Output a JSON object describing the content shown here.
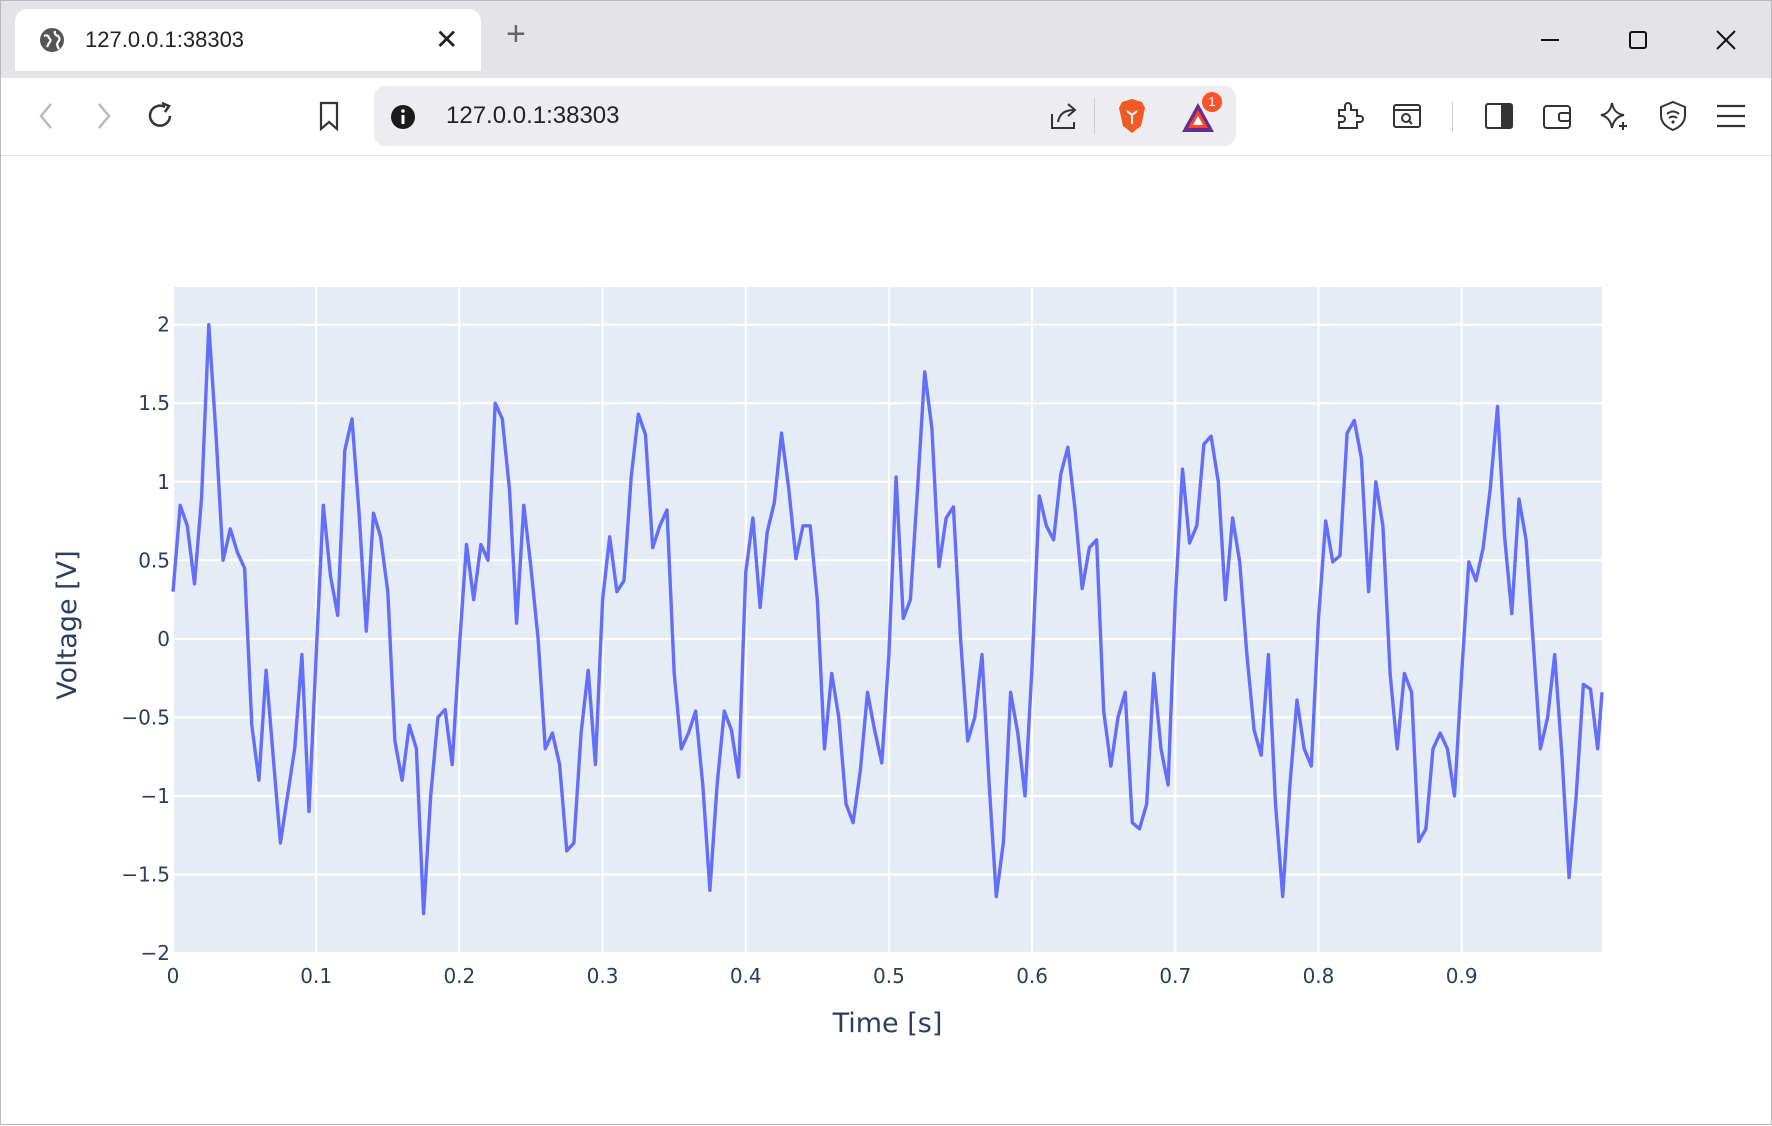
{
  "browser": {
    "tab_title": "127.0.0.1:38303",
    "address": "127.0.0.1:38303",
    "notification_count": "1",
    "new_tab": "+",
    "close_tab": "✕"
  },
  "colors": {
    "line": "#636efa",
    "plot_bg": "#e5ecf6",
    "grid": "#ffffff",
    "text": "#2a3f5f"
  },
  "chart_data": {
    "type": "line",
    "title": "",
    "xlabel": "Time [s]",
    "ylabel": "Voltage [V]",
    "xlim": [
      0,
      0.998
    ],
    "ylim": [
      -2,
      2.24
    ],
    "grid": true,
    "xticks": [
      0,
      0.1,
      0.2,
      0.3,
      0.4,
      0.5,
      0.6,
      0.7,
      0.8,
      0.9
    ],
    "xtick_labels": [
      "0",
      "0.1",
      "0.2",
      "0.3",
      "0.4",
      "0.5",
      "0.6",
      "0.7",
      "0.8",
      "0.9"
    ],
    "yticks": [
      2,
      1.5,
      1,
      0.5,
      0,
      -0.5,
      -1,
      -1.5,
      -2
    ],
    "ytick_labels": [
      "2",
      "1.5",
      "1",
      "0.5",
      "0",
      "−0.5",
      "−1",
      "−1.5",
      "−2"
    ],
    "series": [
      {
        "name": "Voltage",
        "dt": 0.005,
        "values": [
          0.3,
          0.85,
          0.72,
          0.35,
          0.9,
          2.0,
          1.3,
          0.5,
          0.7,
          0.55,
          0.45,
          -0.55,
          -0.9,
          -0.2,
          -0.75,
          -1.3,
          -1.0,
          -0.7,
          -0.1,
          -1.1,
          -0.1,
          0.85,
          0.4,
          0.15,
          1.2,
          1.4,
          0.8,
          0.05,
          0.8,
          0.65,
          0.3,
          -0.65,
          -0.9,
          -0.55,
          -0.7,
          -1.75,
          -1.0,
          -0.5,
          -0.45,
          -0.8,
          -0.05,
          0.6,
          0.25,
          0.6,
          0.5,
          1.5,
          1.4,
          0.95,
          0.1,
          0.85,
          0.45,
          0.0,
          -0.7,
          -0.6,
          -0.8,
          -1.35,
          -1.3,
          -0.6,
          -0.2,
          -0.8,
          0.25,
          0.65,
          0.3,
          0.37,
          1.03,
          1.43,
          1.3,
          0.58,
          0.72,
          0.82,
          -0.22,
          -0.7,
          -0.6,
          -0.46,
          -0.93,
          -1.6,
          -0.93,
          -0.46,
          -0.58,
          -0.88,
          0.42,
          0.77,
          0.2,
          0.68,
          0.87,
          1.31,
          0.96,
          0.51,
          0.72,
          0.72,
          0.25,
          -0.7,
          -0.22,
          -0.5,
          -1.05,
          -1.17,
          -0.84,
          -0.34,
          -0.58,
          -0.79,
          -0.1,
          1.03,
          0.13,
          0.25,
          0.96,
          1.7,
          1.34,
          0.46,
          0.77,
          0.84,
          0.01,
          -0.65,
          -0.5,
          -0.1,
          -0.93,
          -1.64,
          -1.29,
          -0.34,
          -0.6,
          -1.0,
          -0.17,
          0.91,
          0.72,
          0.63,
          1.05,
          1.22,
          0.82,
          0.32,
          0.58,
          0.63,
          -0.46,
          -0.81,
          -0.5,
          -0.34,
          -1.17,
          -1.21,
          -1.05,
          -0.22,
          -0.7,
          -0.93,
          0.25,
          1.08,
          0.61,
          0.72,
          1.24,
          1.29,
          1.0,
          0.25,
          0.77,
          0.49,
          -0.1,
          -0.58,
          -0.74,
          -0.1,
          -1.05,
          -1.64,
          -0.93,
          -0.39,
          -0.7,
          -0.81,
          0.13,
          0.75,
          0.49,
          0.53,
          1.31,
          1.39,
          1.15,
          0.3,
          1.0,
          0.72,
          -0.22,
          -0.7,
          -0.22,
          -0.34,
          -1.29,
          -1.21,
          -0.7,
          -0.6,
          -0.7,
          -1.0,
          -0.22,
          0.49,
          0.37,
          0.58,
          0.96,
          1.48,
          0.65,
          0.16,
          0.89,
          0.63,
          -0.03,
          -0.7,
          -0.5,
          -0.1,
          -0.74,
          -1.52,
          -1.0,
          -0.29,
          -0.32,
          -0.7,
          -0.34
        ]
      }
    ]
  }
}
